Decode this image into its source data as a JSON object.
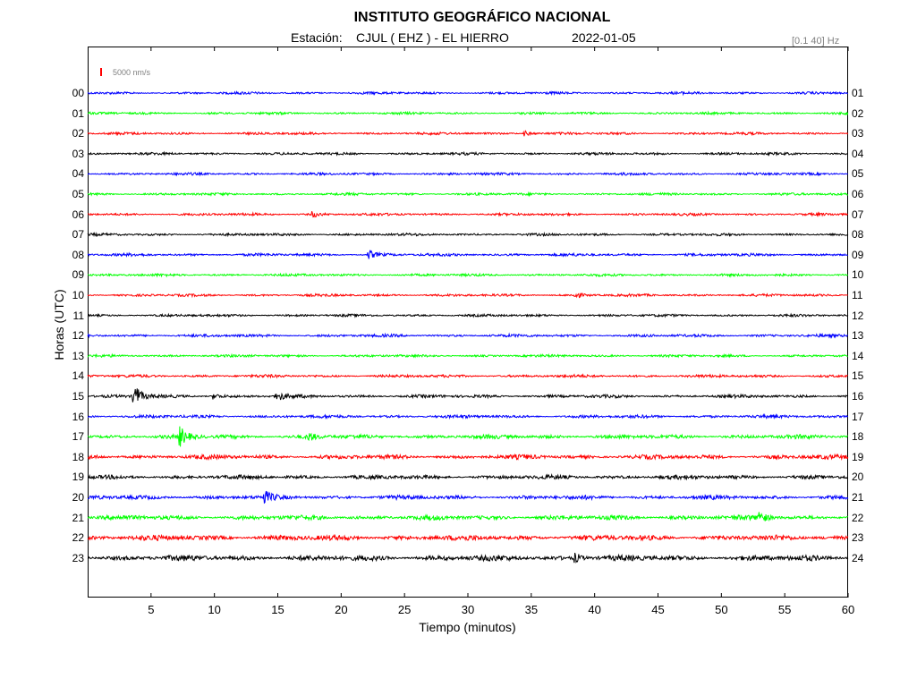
{
  "header": {
    "institution": "INSTITUTO GEOGRÁFICO NACIONAL",
    "station_label": "Estación:",
    "station": "CJUL ( EHZ ) - EL HIERRO",
    "date": "2022-01-05",
    "filter_band": "[0.1 40] Hz"
  },
  "scale": {
    "label": "5000 nm/s",
    "color": "#ff0000"
  },
  "chart_data": {
    "type": "line",
    "xlabel": "Tiempo (minutos)",
    "ylabel": "Horas (UTC)",
    "xlim": [
      0,
      60
    ],
    "x_ticks": [
      5,
      10,
      15,
      20,
      25,
      30,
      35,
      40,
      45,
      50,
      55,
      60
    ],
    "left_hour_labels": [
      "00",
      "01",
      "02",
      "03",
      "04",
      "05",
      "06",
      "07",
      "08",
      "09",
      "10",
      "11",
      "12",
      "13",
      "14",
      "15",
      "16",
      "17",
      "18",
      "19",
      "20",
      "21",
      "22",
      "23"
    ],
    "right_hour_labels": [
      "01",
      "02",
      "03",
      "04",
      "05",
      "06",
      "07",
      "08",
      "09",
      "10",
      "11",
      "12",
      "13",
      "14",
      "15",
      "16",
      "17",
      "18",
      "19",
      "20",
      "21",
      "22",
      "23",
      "24"
    ],
    "trace_colors": [
      "#0000ff",
      "#00ff00",
      "#ff0000",
      "#000000"
    ],
    "noise_amplitude": [
      1.6,
      1.5,
      1.6,
      1.6,
      1.6,
      1.6,
      1.6,
      1.6,
      1.8,
      1.6,
      1.6,
      1.6,
      1.8,
      1.6,
      1.8,
      2.0,
      2.0,
      2.6,
      2.8,
      2.6,
      2.6,
      3.0,
      3.4,
      3.6
    ],
    "events": [
      {
        "hour": 2,
        "minute": 34.5,
        "amplitude": 3
      },
      {
        "hour": 6,
        "minute": 17.8,
        "amplitude": 3
      },
      {
        "hour": 8,
        "minute": 22.2,
        "amplitude": 5
      },
      {
        "hour": 10,
        "minute": 38.5,
        "amplitude": 3
      },
      {
        "hour": 15,
        "minute": 3.7,
        "amplitude": 14
      },
      {
        "hour": 15,
        "minute": 15.0,
        "amplitude": 5
      },
      {
        "hour": 15,
        "minute": 10.0,
        "amplitude": 3
      },
      {
        "hour": 17,
        "minute": 7.3,
        "amplitude": 10
      },
      {
        "hour": 17,
        "minute": 17.5,
        "amplitude": 4
      },
      {
        "hour": 20,
        "minute": 14.0,
        "amplitude": 6
      },
      {
        "hour": 21,
        "minute": 53.0,
        "amplitude": 7
      },
      {
        "hour": 23,
        "minute": 38.5,
        "amplitude": 5
      }
    ]
  }
}
